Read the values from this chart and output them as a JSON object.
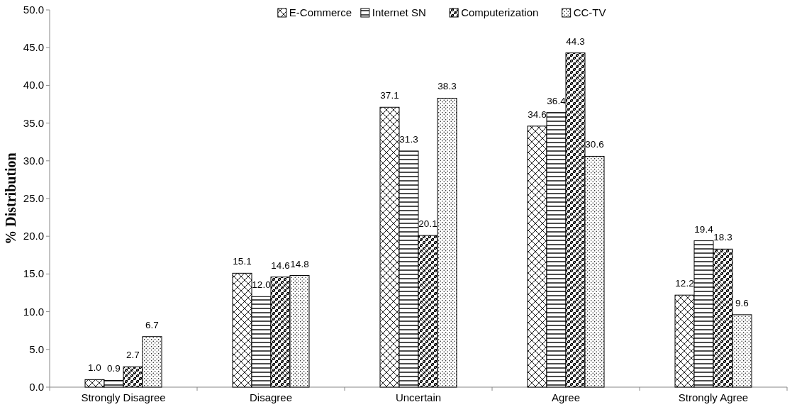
{
  "chart_data": {
    "type": "bar",
    "ylabel": "% Distribution",
    "categories": [
      "Strongly Disagree",
      "Disagree",
      "Uncertain",
      "Agree",
      "Strongly Agree"
    ],
    "series": [
      {
        "name": "E-Commerce",
        "color": "#000000",
        "values": [
          1.0,
          15.1,
          37.1,
          34.6,
          12.2
        ],
        "value_labels": [
          "1.0",
          "15.1",
          "37.1",
          "34.6",
          "12.2"
        ]
      },
      {
        "name": "Internet SN",
        "color": "#000000",
        "values": [
          0.9,
          12.0,
          31.3,
          36.4,
          19.4
        ],
        "value_labels": [
          "0.9",
          "12.0",
          "31.3",
          "36.4",
          "19.4"
        ]
      },
      {
        "name": "Computerization",
        "color": "#000000",
        "values": [
          2.7,
          14.6,
          20.1,
          44.3,
          18.3
        ],
        "value_labels": [
          "2.7",
          "14.6",
          "20.1",
          "44.3",
          "18.3"
        ]
      },
      {
        "name": "CC-TV",
        "color": "#000000",
        "values": [
          6.7,
          14.8,
          38.3,
          30.6,
          9.6
        ],
        "value_labels": [
          "6.7",
          "14.8",
          "38.3",
          "30.6",
          "9.6"
        ]
      }
    ],
    "ylim": [
      0,
      50
    ],
    "yticks": [
      {
        "value": 0,
        "label": "0.0"
      },
      {
        "value": 5,
        "label": "5.0"
      },
      {
        "value": 10,
        "label": "10.0"
      },
      {
        "value": 15,
        "label": "15.0"
      },
      {
        "value": 20,
        "label": "20.0"
      },
      {
        "value": 25,
        "label": "25.0"
      },
      {
        "value": 30,
        "label": "30.0"
      },
      {
        "value": 35,
        "label": "35.0"
      },
      {
        "value": 40,
        "label": "40.0"
      },
      {
        "value": 45,
        "label": "45.0"
      },
      {
        "value": 50,
        "label": "50.0"
      }
    ],
    "legend": "top",
    "grid": false
  }
}
